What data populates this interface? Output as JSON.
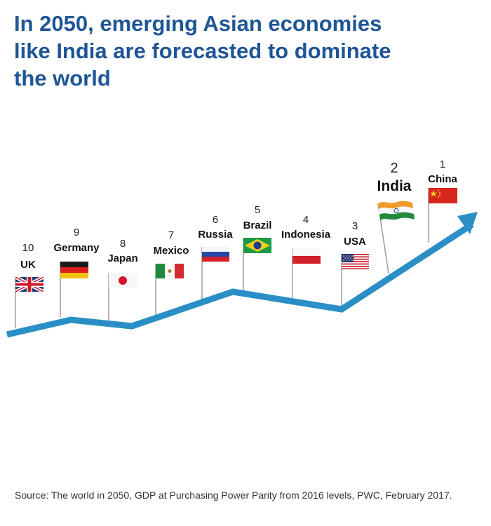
{
  "title": {
    "line1": "In 2050, emerging Asian economies",
    "line2": "like India are forecasted to dominate",
    "line3": "the world"
  },
  "countries": [
    {
      "rank": "10",
      "name": "UK"
    },
    {
      "rank": "9",
      "name": "Germany"
    },
    {
      "rank": "8",
      "name": "Japan"
    },
    {
      "rank": "7",
      "name": "Mexico"
    },
    {
      "rank": "6",
      "name": "Russia"
    },
    {
      "rank": "5",
      "name": "Brazil"
    },
    {
      "rank": "4",
      "name": "Indonesia"
    },
    {
      "rank": "3",
      "name": "USA"
    },
    {
      "rank": "2",
      "name": "India"
    },
    {
      "rank": "1",
      "name": "China"
    }
  ],
  "source": "Source: The world in 2050, GDP at Purchasing Power Parity from 2016 levels, PWC, February 2017.",
  "colors": {
    "title": "#1f5596",
    "trend_arrow": "#2a8fc6",
    "pole": "#999999"
  },
  "icons": [
    "uk-flag-icon",
    "germany-flag-icon",
    "japan-flag-icon",
    "mexico-flag-icon",
    "russia-flag-icon",
    "brazil-flag-icon",
    "indonesia-flag-icon",
    "usa-flag-icon",
    "india-flag-icon",
    "china-flag-icon",
    "trend-arrow-icon"
  ]
}
